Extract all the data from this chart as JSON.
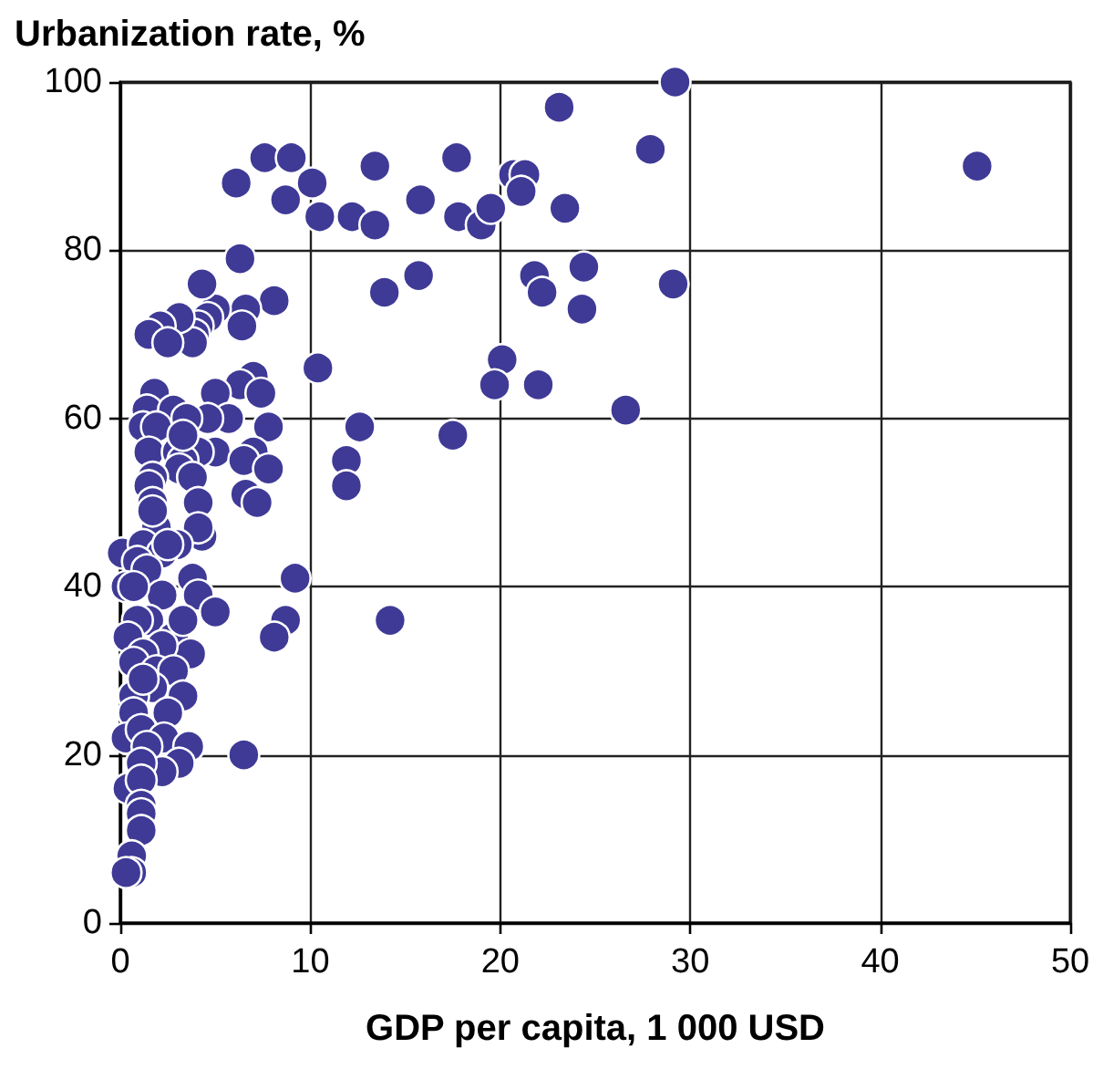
{
  "chart_data": {
    "type": "scatter",
    "ylabel": "Urbanization rate, %",
    "xlabel": "GDP per capita, 1 000 USD",
    "xlim": [
      0,
      50
    ],
    "xticks": [
      0,
      10,
      20,
      30,
      40,
      50
    ],
    "ylim": [
      0,
      100
    ],
    "yticks": [
      0,
      20,
      40,
      60,
      80,
      100
    ],
    "grid": true,
    "marker": "circle",
    "series": [
      {
        "color": "#3f3a96",
        "x": [
          29.2,
          23.1,
          27.9,
          45.1,
          23.4,
          21.8,
          24.4,
          22.2,
          24.3,
          29.1,
          22.0,
          26.6,
          6.1,
          7.6,
          9.0,
          8.7,
          10.1,
          10.5,
          12.2,
          13.4,
          13.4,
          15.8,
          17.7,
          17.8,
          19.0,
          19.5,
          20.7,
          21.3,
          21.1,
          6.3,
          8.1,
          6.6,
          6.4,
          5.0,
          13.9,
          15.7,
          10.4,
          20.1,
          19.7,
          7.0,
          6.3,
          7.4,
          5.0,
          5.7,
          7.8,
          4.6,
          12.6,
          17.5,
          11.9,
          11.9,
          5.0,
          7.0,
          6.5,
          7.8,
          6.6,
          7.2,
          4.3,
          9.2,
          8.7,
          14.2,
          8.1,
          4.3,
          4.6,
          4.1,
          3.9,
          3.8,
          3.1,
          2.1,
          1.5,
          2.5,
          1.8,
          1.4,
          2.8,
          3.5,
          1.2,
          1.9,
          1.5,
          3.0,
          4.1,
          3.3,
          3.1,
          3.8,
          1.7,
          1.5,
          4.1,
          1.7,
          1.9,
          4.1,
          1.7,
          0.1,
          1.2,
          3.0,
          2.2,
          0.9,
          1.4,
          2.2,
          3.8,
          4.1,
          5.0,
          0.3,
          0.7,
          1.5,
          0.9,
          0.4,
          2.8,
          3.3,
          3.7,
          2.2,
          1.2,
          0.7,
          1.9,
          2.8,
          1.7,
          3.3,
          2.5,
          0.7,
          0.7,
          0.3,
          1.1,
          2.3,
          3.6,
          1.4,
          6.5,
          3.1,
          2.2,
          1.1,
          0.4,
          1.1,
          1.1,
          1.1,
          1.1,
          0.6,
          0.6,
          0.3,
          3.3,
          2.5,
          1.2
        ],
        "values": [
          100,
          97,
          92,
          90,
          85,
          77,
          78,
          75,
          73,
          76,
          64,
          61,
          88,
          91,
          91,
          86,
          88,
          84,
          84,
          83,
          90,
          86,
          91,
          84,
          83,
          85,
          89,
          89,
          87,
          79,
          74,
          73,
          71,
          73,
          75,
          77,
          66,
          67,
          64,
          65,
          64,
          63,
          63,
          60,
          59,
          60,
          59,
          58,
          55,
          52,
          56,
          56,
          55,
          54,
          51,
          50,
          46,
          41,
          36,
          36,
          34,
          76,
          72,
          71,
          70,
          69,
          72,
          71,
          70,
          69,
          63,
          61,
          61,
          60,
          59,
          59,
          56,
          56,
          56,
          55,
          54,
          53,
          53,
          52,
          50,
          50,
          47,
          47,
          49,
          44,
          45,
          45,
          44,
          43,
          42,
          39,
          41,
          39,
          37,
          40,
          40,
          36,
          36,
          34,
          34,
          36,
          32,
          33,
          32,
          31,
          30,
          30,
          28,
          27,
          25,
          27,
          25,
          22,
          23,
          22,
          21,
          21,
          20,
          19,
          18,
          19,
          16,
          17,
          14,
          13,
          11,
          8,
          6,
          6,
          58,
          45,
          29
        ]
      }
    ]
  }
}
